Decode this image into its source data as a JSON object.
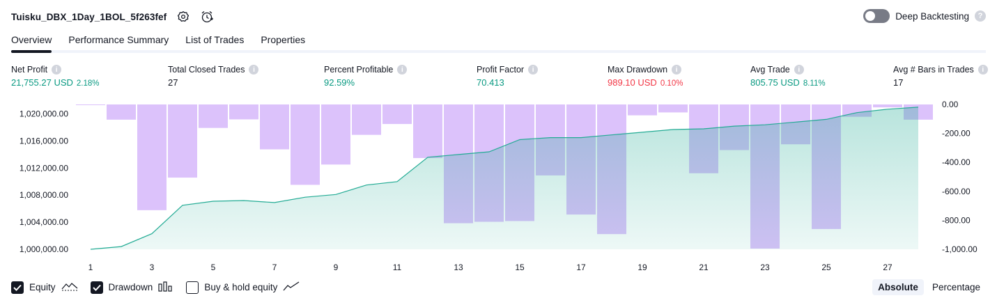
{
  "header": {
    "strategy_name": "Tuisku_DBX_1Day_1BOL_5f263fef",
    "deep_backtesting_label": "Deep Backtesting",
    "deep_backtesting_enabled": false,
    "help_glyph": "?"
  },
  "tabs": [
    {
      "label": "Overview",
      "active": true
    },
    {
      "label": "Performance Summary",
      "active": false
    },
    {
      "label": "List of Trades",
      "active": false
    },
    {
      "label": "Properties",
      "active": false
    }
  ],
  "metrics": [
    {
      "label": "Net Profit",
      "value": "21,755.27 USD",
      "pct": "2.18%",
      "tone": "pos"
    },
    {
      "label": "Total Closed Trades",
      "value": "27",
      "pct": "",
      "tone": "neutral"
    },
    {
      "label": "Percent Profitable",
      "value": "92.59%",
      "pct": "",
      "tone": "pos"
    },
    {
      "label": "Profit Factor",
      "value": "70.413",
      "pct": "",
      "tone": "pos"
    },
    {
      "label": "Max Drawdown",
      "value": "989.10 USD",
      "pct": "0.10%",
      "tone": "neg"
    },
    {
      "label": "Avg Trade",
      "value": "805.75 USD",
      "pct": "8.11%",
      "tone": "pos"
    },
    {
      "label": "Avg # Bars in Trades",
      "value": "17",
      "pct": "",
      "tone": "neutral"
    }
  ],
  "chart_data": {
    "type": "area",
    "x": [
      1,
      2,
      3,
      4,
      5,
      6,
      7,
      8,
      9,
      10,
      11,
      12,
      13,
      14,
      15,
      16,
      17,
      18,
      19,
      20,
      21,
      22,
      23,
      24,
      25,
      26,
      27,
      28
    ],
    "x_tick_labels": [
      "1",
      "3",
      "5",
      "7",
      "9",
      "11",
      "13",
      "15",
      "17",
      "19",
      "21",
      "23",
      "25",
      "27"
    ],
    "left_axis": {
      "ticks": [
        "1,000,000.00",
        "1,004,000.00",
        "1,008,000.00",
        "1,012,000.00",
        "1,016,000.00",
        "1,020,000.00"
      ],
      "ylim": [
        1000000,
        1021400
      ]
    },
    "right_axis": {
      "ticks": [
        "0.00",
        "-200.00",
        "-400.00",
        "-600.00",
        "-800.00",
        "-1,000.00"
      ],
      "ylim": [
        -1000,
        0
      ]
    },
    "series": [
      {
        "name": "Equity",
        "kind": "area",
        "color": "#22ab94",
        "values": [
          1000000,
          1000400,
          1002300,
          1006500,
          1007100,
          1007200,
          1006900,
          1007700,
          1008100,
          1009500,
          1010000,
          1013600,
          1014000,
          1014400,
          1016200,
          1016500,
          1016500,
          1016900,
          1017300,
          1017700,
          1017800,
          1018200,
          1018400,
          1018800,
          1019200,
          1020200,
          1020700,
          1021000
        ]
      },
      {
        "name": "Drawdown",
        "kind": "bar",
        "color": "#c69cf9",
        "values": [
          -2,
          -105,
          -730,
          -505,
          -162,
          -103,
          -310,
          -555,
          -415,
          -210,
          -135,
          -370,
          -820,
          -810,
          -805,
          -490,
          -760,
          -895,
          -75,
          -55,
          -475,
          -315,
          -995,
          -275,
          -860,
          -85,
          -20,
          -105
        ]
      }
    ],
    "grid": false
  },
  "legend": [
    {
      "label": "Equity",
      "checked": true,
      "icon": "equity-line-icon"
    },
    {
      "label": "Drawdown",
      "checked": true,
      "icon": "drawdown-bars-icon"
    },
    {
      "label": "Buy & hold equity",
      "checked": false,
      "icon": "buy-hold-line-icon"
    }
  ],
  "modes": [
    {
      "label": "Absolute",
      "active": true
    },
    {
      "label": "Percentage",
      "active": false
    }
  ],
  "colors": {
    "positive": "#089981",
    "negative": "#f23645",
    "drawdown_bar": "#c69cf9",
    "equity_fill": "#22ab94",
    "toggle_off": "#787b86"
  }
}
